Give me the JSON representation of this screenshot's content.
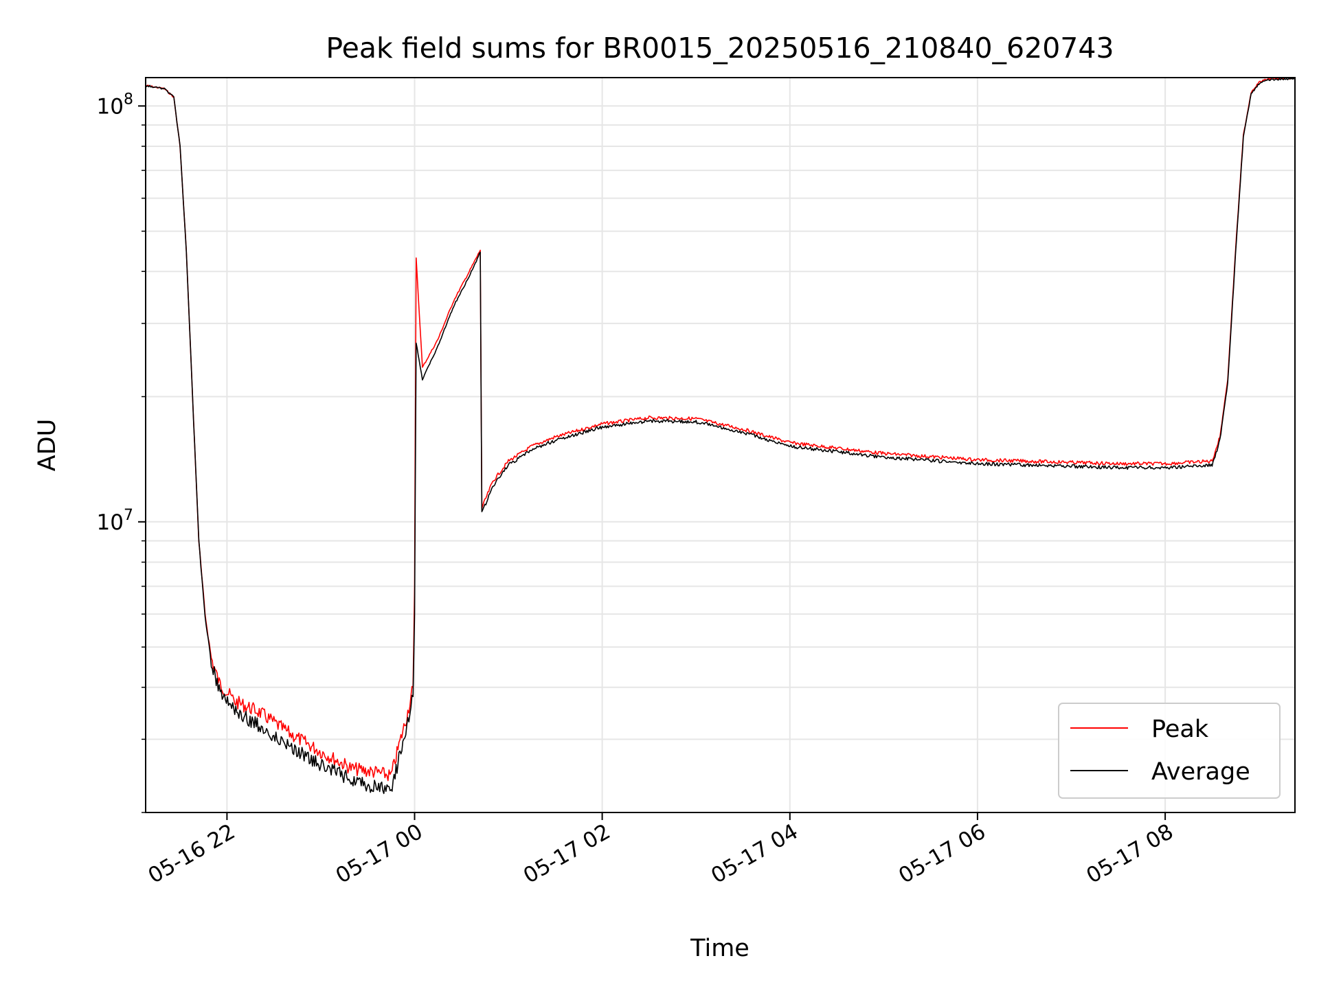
{
  "chart_data": {
    "type": "line",
    "title": "Peak field sums for BR0015_20250516_210840_620743",
    "xlabel": "Time",
    "ylabel": "ADU",
    "yscale": "log",
    "xlim": [
      "2025-05-16 21:08",
      "2025-05-17 09:23"
    ],
    "ylim": [
      2000000,
      117000000
    ],
    "x_ticks": [
      {
        "x": "2025-05-16 22:00",
        "label": "05-16 22"
      },
      {
        "x": "2025-05-17 00:00",
        "label": "05-17 00"
      },
      {
        "x": "2025-05-17 02:00",
        "label": "05-17 02"
      },
      {
        "x": "2025-05-17 04:00",
        "label": "05-17 04"
      },
      {
        "x": "2025-05-17 06:00",
        "label": "05-17 06"
      },
      {
        "x": "2025-05-17 08:00",
        "label": "05-17 08"
      }
    ],
    "y_ticks": [
      {
        "value": 10000000,
        "base": "10",
        "exp": "7"
      },
      {
        "value": 100000000,
        "base": "10",
        "exp": "8"
      }
    ],
    "grid": true,
    "legend_position": "lower-right",
    "series": [
      {
        "name": "Peak",
        "color": "#ff0000",
        "x": [
          "2025-05-16 21:08",
          "2025-05-16 21:20",
          "2025-05-16 21:26",
          "2025-05-16 21:30",
          "2025-05-16 21:34",
          "2025-05-16 21:38",
          "2025-05-16 21:42",
          "2025-05-16 21:46",
          "2025-05-16 21:50",
          "2025-05-16 21:55",
          "2025-05-16 22:05",
          "2025-05-16 22:20",
          "2025-05-16 22:40",
          "2025-05-16 23:00",
          "2025-05-16 23:20",
          "2025-05-16 23:35",
          "2025-05-16 23:45",
          "2025-05-16 23:50",
          "2025-05-16 23:55",
          "2025-05-16 23:59",
          "2025-05-17 00:00",
          "2025-05-17 00:01",
          "2025-05-17 00:05",
          "2025-05-17 00:15",
          "2025-05-17 00:25",
          "2025-05-17 00:35",
          "2025-05-17 00:42",
          "2025-05-17 00:43",
          "2025-05-17 00:50",
          "2025-05-17 01:00",
          "2025-05-17 01:15",
          "2025-05-17 01:30",
          "2025-05-17 02:00",
          "2025-05-17 02:30",
          "2025-05-17 03:00",
          "2025-05-17 03:30",
          "2025-05-17 04:00",
          "2025-05-17 05:00",
          "2025-05-17 06:00",
          "2025-05-17 07:00",
          "2025-05-17 07:30",
          "2025-05-17 08:00",
          "2025-05-17 08:30",
          "2025-05-17 08:35",
          "2025-05-17 08:40",
          "2025-05-17 08:45",
          "2025-05-17 08:50",
          "2025-05-17 08:55",
          "2025-05-17 09:00",
          "2025-05-17 09:05",
          "2025-05-17 09:15",
          "2025-05-17 09:23"
        ],
        "values": [
          112000000,
          110000000,
          105000000,
          80000000,
          45000000,
          20000000,
          9000000,
          6000000,
          4700000,
          4100000,
          3700000,
          3500000,
          3100000,
          2800000,
          2550000,
          2500000,
          2450000,
          2900000,
          3400000,
          4000000,
          7000000,
          43000000,
          23500000,
          27500000,
          34000000,
          40000000,
          45000000,
          10800000,
          12500000,
          14000000,
          15200000,
          16000000,
          17200000,
          17800000,
          17700000,
          16700000,
          15500000,
          14600000,
          14100000,
          13900000,
          13800000,
          13800000,
          14000000,
          16000000,
          22000000,
          45000000,
          85000000,
          108000000,
          114000000,
          116000000,
          116500000,
          116500000
        ]
      },
      {
        "name": "Average",
        "color": "#000000",
        "x": [
          "2025-05-16 21:08",
          "2025-05-16 21:20",
          "2025-05-16 21:26",
          "2025-05-16 21:30",
          "2025-05-16 21:34",
          "2025-05-16 21:38",
          "2025-05-16 21:42",
          "2025-05-16 21:46",
          "2025-05-16 21:50",
          "2025-05-16 21:55",
          "2025-05-16 22:05",
          "2025-05-16 22:20",
          "2025-05-16 22:40",
          "2025-05-16 23:00",
          "2025-05-16 23:20",
          "2025-05-16 23:35",
          "2025-05-16 23:45",
          "2025-05-16 23:50",
          "2025-05-16 23:55",
          "2025-05-16 23:59",
          "2025-05-17 00:00",
          "2025-05-17 00:01",
          "2025-05-17 00:05",
          "2025-05-17 00:15",
          "2025-05-17 00:25",
          "2025-05-17 00:35",
          "2025-05-17 00:42",
          "2025-05-17 00:43",
          "2025-05-17 00:50",
          "2025-05-17 01:00",
          "2025-05-17 01:15",
          "2025-05-17 01:30",
          "2025-05-17 02:00",
          "2025-05-17 02:30",
          "2025-05-17 03:00",
          "2025-05-17 03:30",
          "2025-05-17 04:00",
          "2025-05-17 05:00",
          "2025-05-17 06:00",
          "2025-05-17 07:00",
          "2025-05-17 07:30",
          "2025-05-17 08:00",
          "2025-05-17 08:30",
          "2025-05-17 08:35",
          "2025-05-17 08:40",
          "2025-05-17 08:45",
          "2025-05-17 08:50",
          "2025-05-17 08:55",
          "2025-05-17 09:00",
          "2025-05-17 09:05",
          "2025-05-17 09:15",
          "2025-05-17 09:23"
        ],
        "values": [
          112000000,
          110000000,
          105000000,
          80000000,
          45000000,
          20000000,
          9000000,
          5900000,
          4600000,
          3950000,
          3500000,
          3250000,
          2900000,
          2600000,
          2400000,
          2300000,
          2250000,
          2700000,
          3200000,
          3800000,
          6000000,
          27000000,
          22000000,
          26500000,
          33000000,
          39000000,
          44500000,
          10500000,
          12200000,
          13700000,
          14900000,
          15700000,
          16900000,
          17500000,
          17400000,
          16400000,
          15200000,
          14300000,
          13800000,
          13600000,
          13500000,
          13500000,
          13700000,
          15700000,
          21500000,
          44000000,
          84000000,
          107000000,
          113000000,
          115500000,
          116000000,
          116000000
        ]
      }
    ]
  }
}
